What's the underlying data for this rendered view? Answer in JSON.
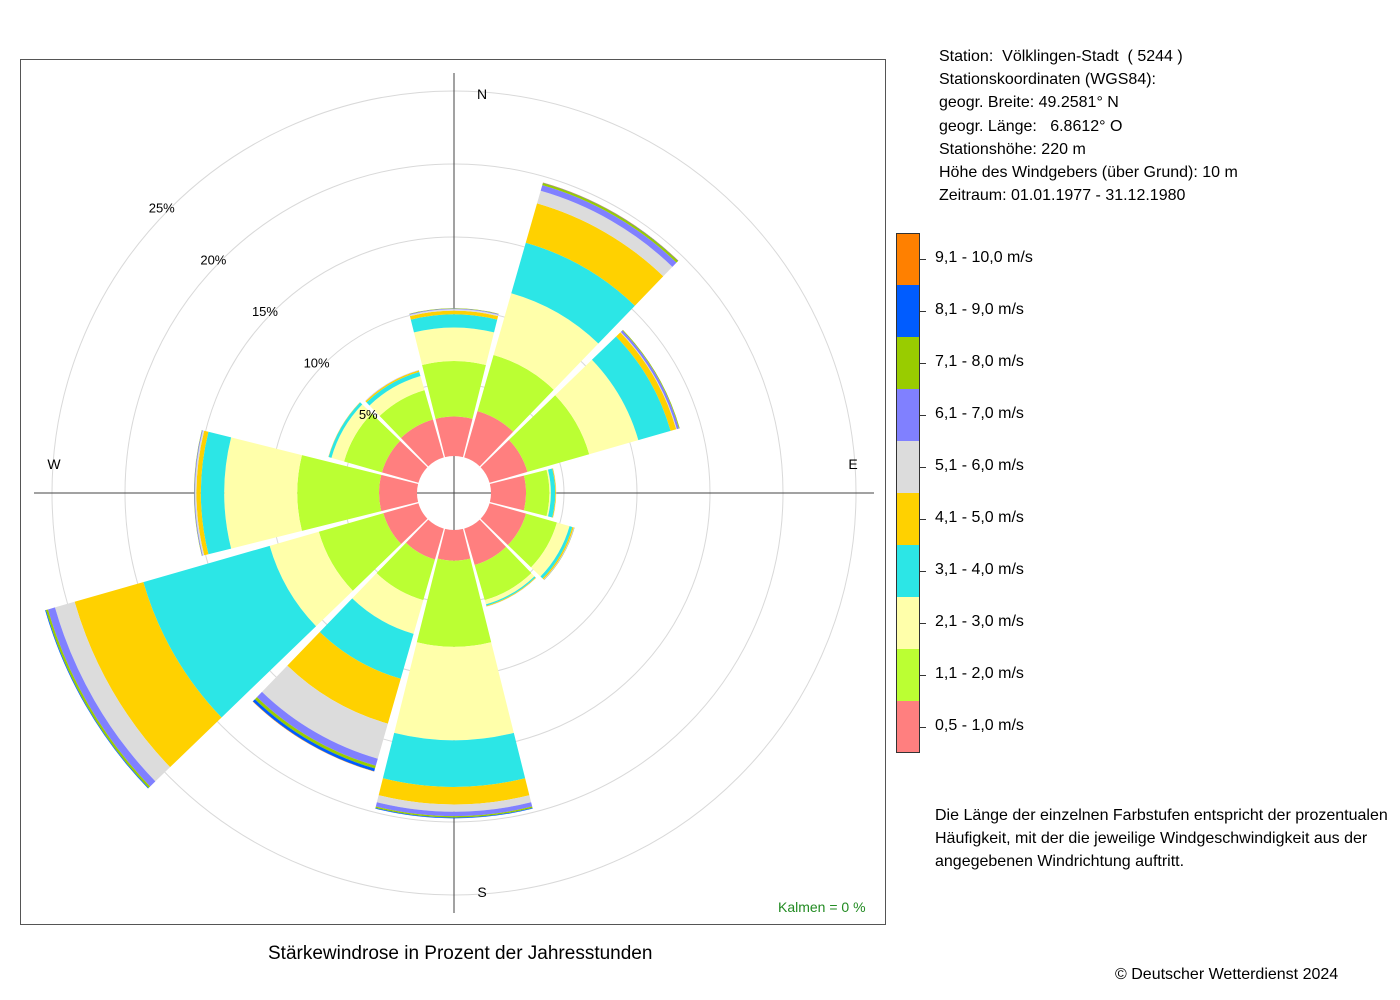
{
  "info": {
    "station": "Station:  Völklingen-Stadt  ( 5244 )",
    "coords_header": "Stationskoordinaten (WGS84):",
    "lat": "geogr. Breite: 49.2581° N",
    "lon": "geogr. Länge:   6.8612° O",
    "elevation": "Stationshöhe: 220 m",
    "wind_height": "Höhe des Windgebers (über Grund): 10 m",
    "period": "Zeitraum: 01.01.1977 - 31.12.1980"
  },
  "caption": "Stärkewindrose in Prozent der Jahresstunden",
  "note": "Die Länge der einzelnen Farbstufen entspricht der prozentualen Häufigkeit, mit der die jeweilige Windgeschwindigkeit aus der angegebenen Windrichtung auftritt.",
  "copyright": "© Deutscher Wetterdienst  2024",
  "kalmen": "Kalmen  =  0 %",
  "chart_data": {
    "type": "wind_rose",
    "title": "Stärkewindrose in Prozent der Jahresstunden",
    "radial_ticks": [
      5,
      10,
      15,
      20,
      25
    ],
    "radial_tick_labels": [
      "5%",
      "10%",
      "15%",
      "20%",
      "25%"
    ],
    "compass_labels": {
      "N": "N",
      "E": "E",
      "S": "S",
      "W": "W"
    },
    "calm_percent": 0,
    "speed_classes": [
      {
        "label": "0,5 - 1,0 m/s",
        "color": "#FF7F7F"
      },
      {
        "label": "1,1 - 2,0 m/s",
        "color": "#BBFF33"
      },
      {
        "label": "2,1 - 3,0 m/s",
        "color": "#FFFFAA"
      },
      {
        "label": "3,1 - 4,0 m/s",
        "color": "#2CE6E6"
      },
      {
        "label": "4,1 - 5,0 m/s",
        "color": "#FFD100"
      },
      {
        "label": "5,1 - 6,0 m/s",
        "color": "#DCDCDC"
      },
      {
        "label": "6,1 - 7,0 m/s",
        "color": "#8080FF"
      },
      {
        "label": "7,1 - 8,0 m/s",
        "color": "#99CC00"
      },
      {
        "label": "8,1 - 9,0 m/s",
        "color": "#005CFF"
      },
      {
        "label": "9,1 - 10,0 m/s",
        "color": "#FF8000"
      }
    ],
    "directions": [
      0,
      30,
      60,
      90,
      120,
      150,
      180,
      210,
      240,
      270,
      300,
      330
    ],
    "series": [
      [
        2.7,
        3.3,
        2.7,
        2.4,
        2.6,
        2.6,
        2.1,
        2.2,
        2.5,
        2.6,
        2.6,
        2.7
      ],
      [
        3.8,
        4.0,
        4.4,
        1.6,
        2.2,
        2.5,
        5.9,
        2.9,
        4.6,
        5.6,
        2.7,
        2.1
      ],
      [
        2.3,
        4.4,
        3.5,
        0.1,
        0.9,
        0.3,
        6.4,
        2.4,
        3.5,
        5.0,
        0.9,
        1.0
      ],
      [
        0.9,
        3.6,
        2.3,
        0.3,
        0.2,
        0.1,
        3.2,
        3.2,
        9.0,
        1.6,
        0.2,
        0.3
      ],
      [
        0.25,
        2.8,
        0.4,
        0.05,
        0.1,
        0.05,
        1.2,
        3.2,
        4.9,
        0.3,
        0.02,
        0.1
      ],
      [
        0.1,
        0.9,
        0.05,
        0.02,
        0.03,
        0.02,
        0.5,
        2.5,
        1.4,
        0.1,
        0.01,
        0.02
      ],
      [
        0.05,
        0.4,
        0.15,
        0.0,
        0.02,
        0.0,
        0.3,
        0.5,
        0.5,
        0.05,
        0.0,
        0.01
      ],
      [
        0.02,
        0.15,
        0.05,
        0.0,
        0.01,
        0.0,
        0.1,
        0.2,
        0.15,
        0.02,
        0.0,
        0.0
      ],
      [
        0.0,
        0.02,
        0.0,
        0.0,
        0.0,
        0.0,
        0.05,
        0.2,
        0.05,
        0.0,
        0.0,
        0.0
      ],
      [
        0.0,
        0.02,
        0.0,
        0.0,
        0.0,
        0.0,
        0.0,
        0.02,
        0.0,
        0.0,
        0.0,
        0.0
      ]
    ]
  }
}
